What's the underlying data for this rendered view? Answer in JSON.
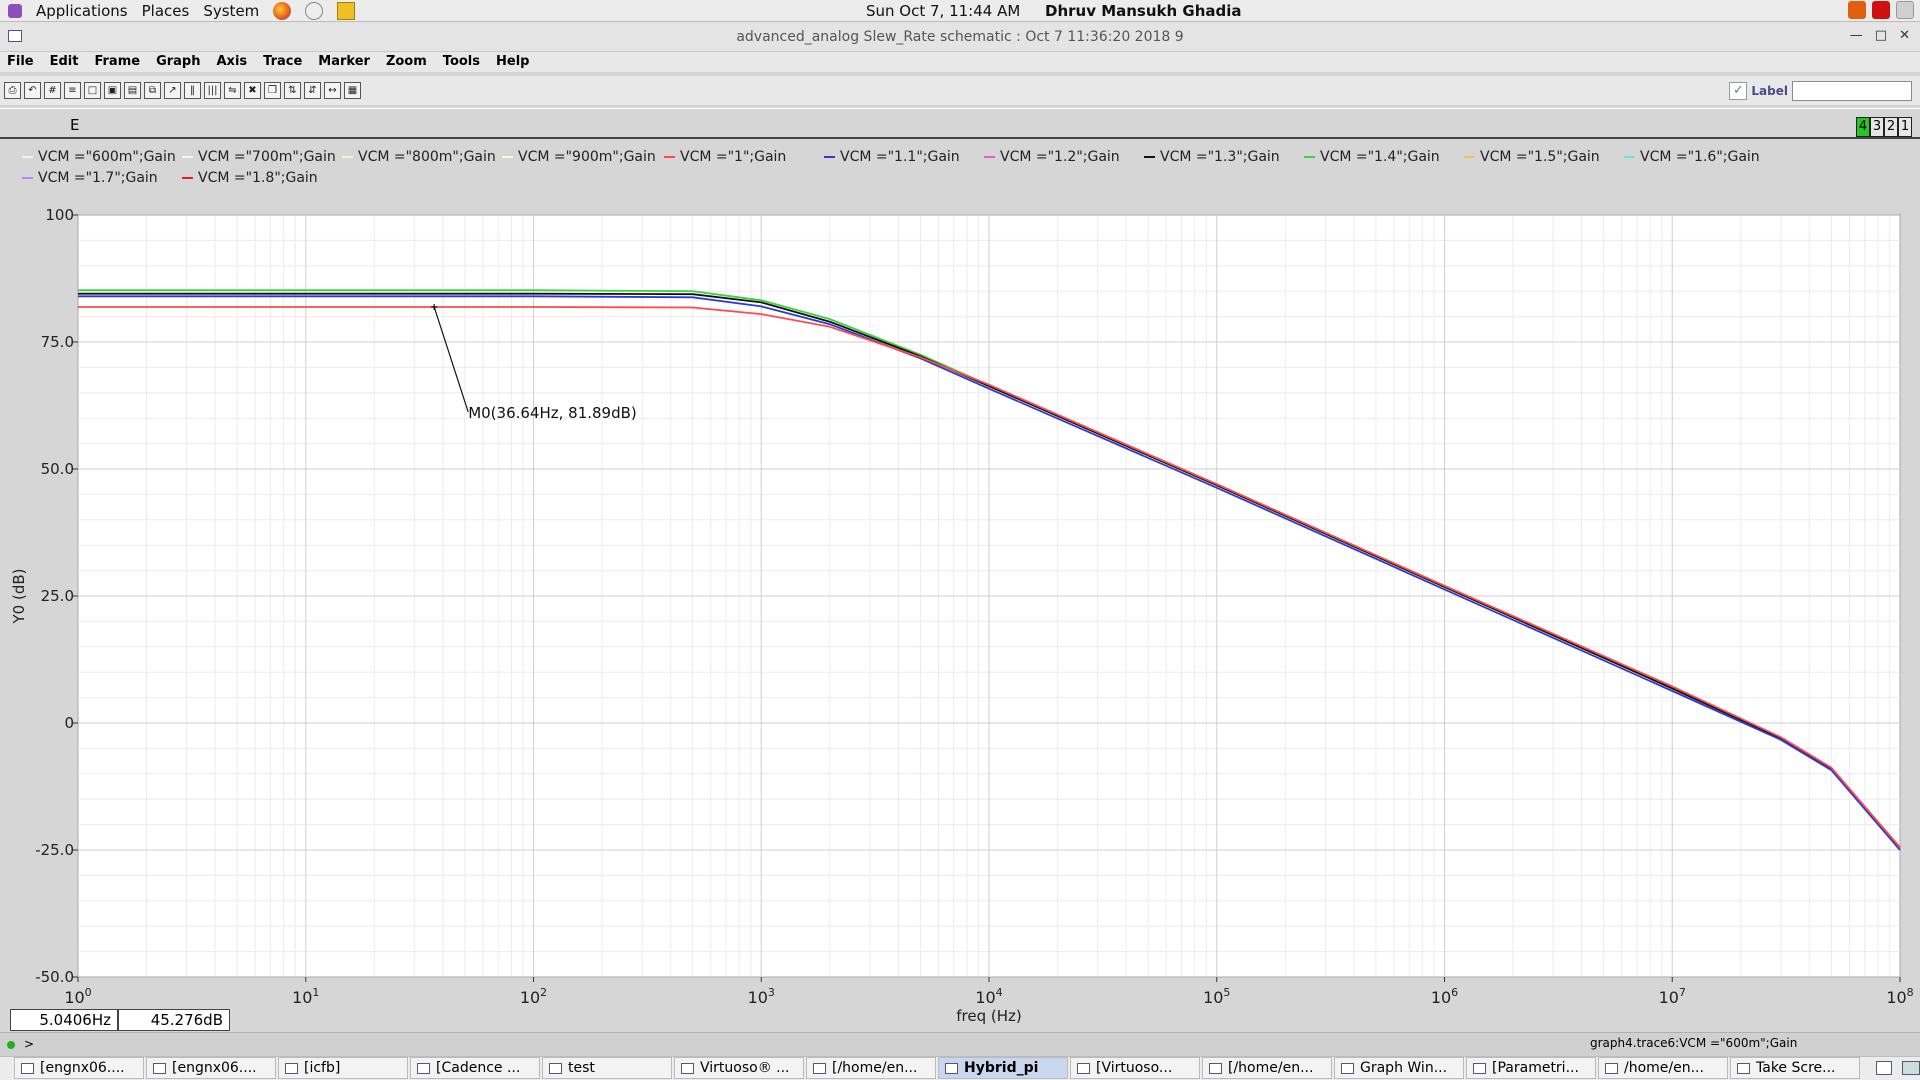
{
  "topbar": {
    "menus": [
      "Applications",
      "Places",
      "System"
    ],
    "clock": "Sun Oct  7, 11:44 AM",
    "user": "Dhruv Mansukh Ghadia"
  },
  "window": {
    "title": "advanced_analog Slew_Rate schematic : Oct  7 11:36:20 2018 9"
  },
  "menubar": [
    "File",
    "Edit",
    "Frame",
    "Graph",
    "Axis",
    "Trace",
    "Marker",
    "Zoom",
    "Tools",
    "Help"
  ],
  "toolbar": {
    "label_text": "Label",
    "label_value": ""
  },
  "panel": {
    "section_letter": "E",
    "tabs": [
      "4",
      "3",
      "2",
      "1"
    ],
    "active_tab": "4"
  },
  "legend": [
    {
      "label": "VCM =\"600m\";Gain",
      "color": "#f2f2f2"
    },
    {
      "label": "VCM =\"700m\";Gain",
      "color": "#f5f5f5"
    },
    {
      "label": "VCM =\"800m\";Gain",
      "color": "#fff3c0"
    },
    {
      "label": "VCM =\"900m\";Gain",
      "color": "#fff9d0"
    },
    {
      "label": "VCM =\"1\";Gain",
      "color": "#ff4a4a"
    },
    {
      "label": "VCM =\"1.1\";Gain",
      "color": "#2a3ad8"
    },
    {
      "label": "VCM =\"1.2\";Gain",
      "color": "#e060d0"
    },
    {
      "label": "VCM =\"1.3\";Gain",
      "color": "#111111"
    },
    {
      "label": "VCM =\"1.4\";Gain",
      "color": "#40d040"
    },
    {
      "label": "VCM =\"1.5\";Gain",
      "color": "#f0c060"
    },
    {
      "label": "VCM =\"1.6\";Gain",
      "color": "#70e0e0"
    },
    {
      "label": "VCM =\"1.7\";Gain",
      "color": "#c080ff"
    },
    {
      "label": "VCM =\"1.8\";Gain",
      "color": "#e02020"
    }
  ],
  "chart_data": {
    "type": "line",
    "title": "",
    "xlabel": "freq (Hz)",
    "ylabel": "Y0 (dB)",
    "x_scale": "log",
    "xlim": [
      1,
      100000000
    ],
    "ylim": [
      -50,
      100
    ],
    "grid": true,
    "x_tick_labels": [
      {
        "base": "10",
        "exp": "0"
      },
      {
        "base": "10",
        "exp": "1"
      },
      {
        "base": "10",
        "exp": "2"
      },
      {
        "base": "10",
        "exp": "3"
      },
      {
        "base": "10",
        "exp": "4"
      },
      {
        "base": "10",
        "exp": "5"
      },
      {
        "base": "10",
        "exp": "6"
      },
      {
        "base": "10",
        "exp": "7"
      },
      {
        "base": "10",
        "exp": "8"
      }
    ],
    "y_tick_labels": [
      "100",
      "75.0",
      "50.0",
      "25.0",
      "0",
      "-25.0",
      "-50.0"
    ],
    "series": [
      {
        "color": "#40d040",
        "x": [
          1,
          100,
          500,
          1000,
          2000,
          5000,
          10000,
          100000,
          1000000,
          10000000,
          30000000,
          50000000,
          100000000
        ],
        "y": [
          85.2,
          85.2,
          85.0,
          83.2,
          79.5,
          72.5,
          66.5,
          47.0,
          27.0,
          7.0,
          -3.0,
          -9.0,
          -24.5
        ]
      },
      {
        "color": "#111111",
        "x": [
          1,
          100,
          500,
          1000,
          2000,
          5000,
          10000,
          100000,
          1000000,
          10000000,
          30000000,
          50000000,
          100000000
        ],
        "y": [
          84.5,
          84.5,
          84.4,
          82.8,
          79.0,
          72.2,
          66.3,
          46.8,
          26.8,
          6.8,
          -3.0,
          -9.0,
          -24.5
        ]
      },
      {
        "color": "#2a3ad8",
        "x": [
          1,
          100,
          500,
          1000,
          2000,
          5000,
          10000,
          100000,
          1000000,
          10000000,
          30000000,
          50000000,
          100000000
        ],
        "y": [
          84.0,
          84.0,
          83.8,
          82.0,
          78.5,
          71.8,
          65.8,
          46.3,
          26.3,
          6.3,
          -3.3,
          -9.3,
          -25.0
        ]
      },
      {
        "color": "#ff4a4a",
        "x": [
          1,
          100,
          500,
          1000,
          2000,
          5000,
          10000,
          100000,
          1000000,
          10000000,
          30000000,
          50000000,
          100000000
        ],
        "y": [
          81.89,
          81.89,
          81.8,
          80.5,
          78.0,
          72.0,
          66.6,
          47.0,
          27.0,
          7.2,
          -2.8,
          -8.8,
          -24.5
        ]
      }
    ],
    "marker": {
      "label": "M0(36.64Hz, 81.89dB)",
      "x": 36.64,
      "y": 81.89
    },
    "cursor_readout": {
      "x": "5.0406Hz",
      "y": "45.276dB"
    },
    "active_trace": "graph4.trace6:VCM =\"600m\";Gain"
  },
  "status": {
    "prompt": ">"
  },
  "taskbar": [
    {
      "label": "[engnx06....",
      "active": false
    },
    {
      "label": "[engnx06....",
      "active": false
    },
    {
      "label": "[icfb]",
      "active": false
    },
    {
      "label": "[Cadence ...",
      "active": false
    },
    {
      "label": "test",
      "active": false
    },
    {
      "label": "Virtuoso® ...",
      "active": false
    },
    {
      "label": "[/home/en...",
      "active": false
    },
    {
      "label": "Hybrid_pi",
      "active": true
    },
    {
      "label": "[Virtuoso...",
      "active": false
    },
    {
      "label": "[/home/en...",
      "active": false
    },
    {
      "label": "Graph Win...",
      "active": false
    },
    {
      "label": "[Parametri...",
      "active": false
    },
    {
      "label": "/home/en...",
      "active": false
    },
    {
      "label": "Take Scre...",
      "active": false
    }
  ]
}
